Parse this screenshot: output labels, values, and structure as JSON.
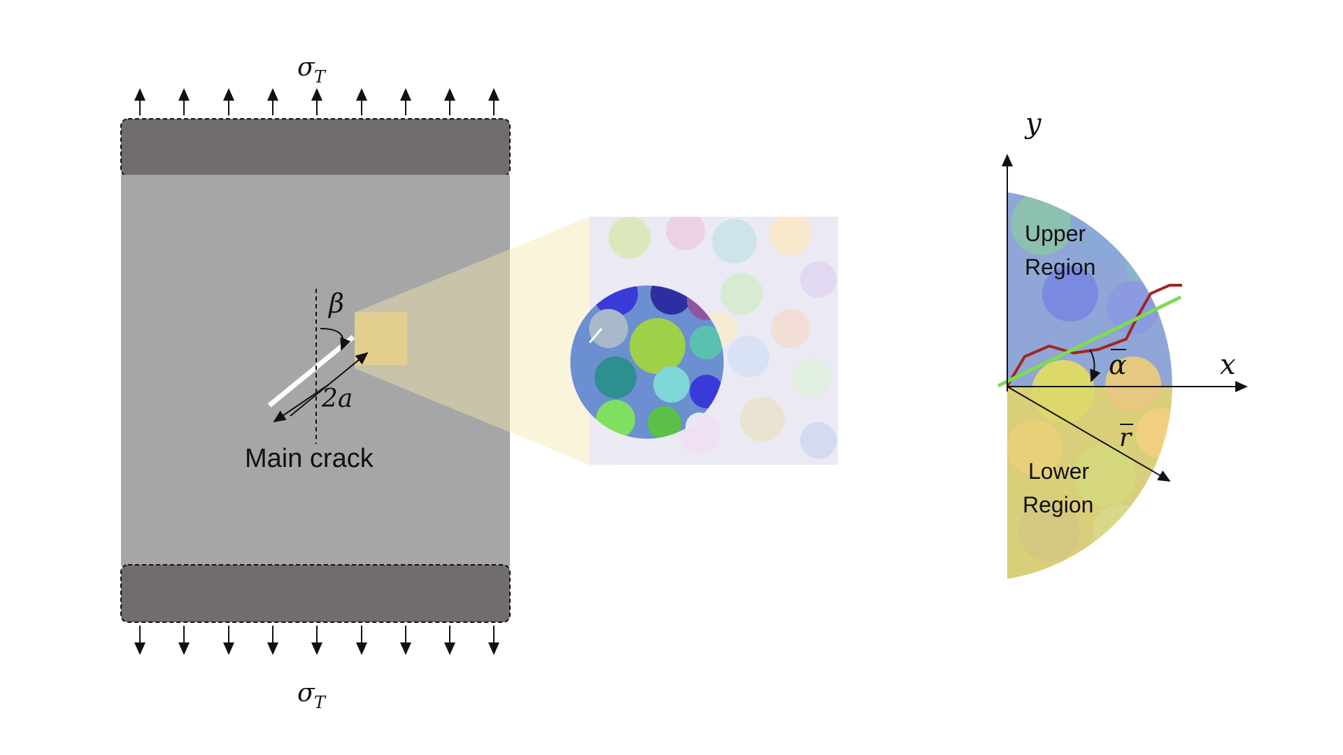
{
  "panel_a": {
    "stress_top": "σ",
    "stress_top_sub": "T",
    "stress_bottom": "σ",
    "stress_bottom_sub": "T",
    "angle_label": "β",
    "length_label": "2a",
    "crack_label": "Main crack",
    "colors": {
      "specimen": "#a6a6a6",
      "grips": "#716d6c",
      "zoom_box": "#e2cf8f",
      "crack": "#ffffff"
    }
  },
  "panel_b": {
    "description_colors": [
      "#5ac048",
      "#3a3ad8",
      "#8c56a0",
      "#9ed048",
      "#7fd6d6",
      "#f6b25a",
      "#2d2fa0"
    ]
  },
  "panel_c": {
    "axis_y": "y",
    "axis_x": "x",
    "upper_region": [
      "Upper",
      "Region"
    ],
    "lower_region": [
      "Lower",
      "Region"
    ],
    "angle_label": "α",
    "radius_label": "r",
    "colors": {
      "upper": "#8fa6d6",
      "lower": "#d9cf7a",
      "crack_path": "#a0261f",
      "crack_line": "#7ddc4e"
    }
  }
}
